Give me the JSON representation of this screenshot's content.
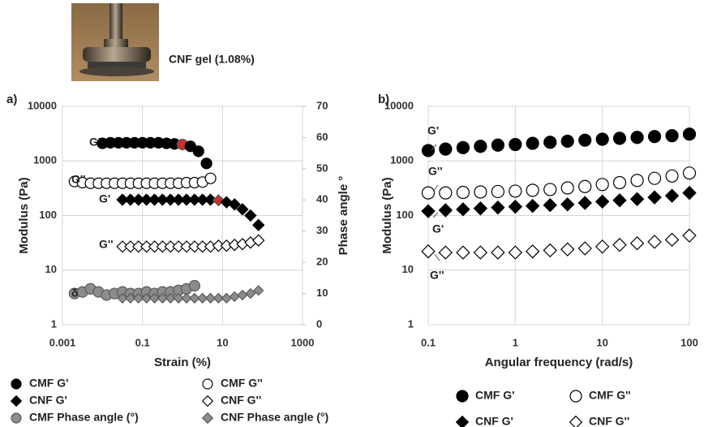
{
  "photo_caption": "CNF gel (1.08%)",
  "chart_data": [
    {
      "type": "scatter",
      "title": "a)",
      "ylabel": "Modulus  (Pa)",
      "y2label": "Phase angle °",
      "xlabel": "Strain (%)",
      "xscale": "log",
      "yscale": "log",
      "grid": true,
      "xlim": [
        0.001,
        1000
      ],
      "xticks": [
        0.001,
        0.1,
        10,
        1000
      ],
      "ylim": [
        1,
        10000
      ],
      "yticks": [
        1,
        10,
        100,
        1000,
        10000
      ],
      "y2lim": [
        0,
        70
      ],
      "y2ticks": [
        0,
        10,
        20,
        30,
        40,
        50,
        60,
        70
      ],
      "annotations": [
        "G'",
        "G''",
        "G'",
        "G''",
        "δ"
      ],
      "series": [
        {
          "name": "CMF G'",
          "marker": "circle",
          "color": "#000000",
          "fill": true,
          "highlight": {
            "index": 10,
            "color": "#c8302c"
          },
          "x": [
            0.01,
            0.0158,
            0.0251,
            0.0398,
            0.0631,
            0.1,
            0.158,
            0.251,
            0.398,
            0.631,
            1,
            1.58,
            2.51,
            3.98
          ],
          "values": [
            2100,
            2150,
            2150,
            2150,
            2150,
            2150,
            2150,
            2150,
            2100,
            2050,
            2000,
            1850,
            1500,
            900
          ]
        },
        {
          "name": "CMF G''",
          "marker": "circle",
          "color": "#000000",
          "fill": false,
          "x": [
            0.002,
            0.00317,
            0.00502,
            0.00796,
            0.0126,
            0.02,
            0.0317,
            0.0502,
            0.0796,
            0.126,
            0.2,
            0.317,
            0.502,
            0.796,
            1.26,
            2,
            3.17,
            5.02
          ],
          "values": [
            420,
            400,
            390,
            390,
            390,
            390,
            390,
            390,
            390,
            390,
            390,
            390,
            390,
            390,
            400,
            400,
            410,
            480
          ]
        },
        {
          "name": "CNF G'",
          "marker": "diamond",
          "color": "#000000",
          "fill": true,
          "highlight": {
            "index": 12,
            "color": "#c8302c"
          },
          "x": [
            0.0316,
            0.0501,
            0.0794,
            0.126,
            0.2,
            0.316,
            0.501,
            0.794,
            1.26,
            2,
            3.16,
            5.01,
            7.94,
            12.6,
            20,
            31.6,
            50.1,
            79.4
          ],
          "values": [
            195,
            195,
            195,
            195,
            195,
            195,
            195,
            195,
            195,
            195,
            195,
            195,
            190,
            175,
            160,
            130,
            100,
            67
          ]
        },
        {
          "name": "CNF G''",
          "marker": "diamond",
          "color": "#000000",
          "fill": false,
          "x": [
            0.0316,
            0.0501,
            0.0794,
            0.126,
            0.2,
            0.316,
            0.501,
            0.794,
            1.26,
            2,
            3.16,
            5.01,
            7.94,
            12.6,
            20,
            31.6,
            50.1,
            79.4
          ],
          "values": [
            27,
            27,
            27,
            27,
            27,
            27,
            27,
            27,
            27,
            27,
            27,
            27,
            28,
            28,
            29,
            30,
            32,
            35
          ]
        },
        {
          "name": "CMF Phase angle (°)",
          "marker": "circle",
          "color": "#8c8c8c",
          "fill": true,
          "axis": "y2",
          "x": [
            0.002,
            0.00317,
            0.00502,
            0.00796,
            0.0126,
            0.02,
            0.0317,
            0.0502,
            0.0796,
            0.126,
            0.2,
            0.317,
            0.502,
            0.796,
            1.26,
            2
          ],
          "values": [
            10,
            10.5,
            11.5,
            10.5,
            9.5,
            10,
            10.5,
            10,
            10,
            10.5,
            10,
            10.5,
            10.5,
            11,
            11.5,
            12.5
          ]
        },
        {
          "name": "CNF Phase angle (°)",
          "marker": "diamond",
          "color": "#8c8c8c",
          "fill": true,
          "axis": "y2",
          "x": [
            0.0316,
            0.0501,
            0.0794,
            0.126,
            0.2,
            0.316,
            0.501,
            0.794,
            1.26,
            2,
            3.16,
            5.01,
            7.94,
            12.6,
            20,
            31.6,
            50.1,
            79.4
          ],
          "values": [
            8.5,
            8.5,
            8.5,
            8.5,
            8.5,
            8.5,
            8.5,
            8.5,
            8.5,
            8.5,
            8.5,
            8.5,
            8.5,
            8.5,
            9,
            9.5,
            10,
            11
          ]
        }
      ]
    },
    {
      "type": "scatter",
      "title": "b)",
      "ylabel": "Modulus (Pa)",
      "xlabel": "Angular frequency (rad/s)",
      "xscale": "log",
      "yscale": "log",
      "grid": true,
      "xlim": [
        0.1,
        100
      ],
      "xticks": [
        0.1,
        1,
        10,
        100
      ],
      "ylim": [
        1,
        10000
      ],
      "yticks": [
        1,
        10,
        100,
        1000,
        10000
      ],
      "annotations": [
        "G'",
        "G''",
        "G'",
        "G''"
      ],
      "series": [
        {
          "name": "CMF G'",
          "marker": "circle",
          "color": "#000000",
          "fill": true,
          "x": [
            0.1,
            0.158,
            0.251,
            0.398,
            0.631,
            1,
            1.58,
            2.51,
            3.98,
            6.31,
            10,
            15.8,
            25.1,
            39.8,
            63.1,
            100
          ],
          "values": [
            1550,
            1650,
            1750,
            1850,
            1950,
            2000,
            2100,
            2200,
            2300,
            2400,
            2500,
            2600,
            2700,
            2800,
            2900,
            3100
          ]
        },
        {
          "name": "CMF G''",
          "marker": "circle",
          "color": "#000000",
          "fill": false,
          "x": [
            0.1,
            0.158,
            0.251,
            0.398,
            0.631,
            1,
            1.58,
            2.51,
            3.98,
            6.31,
            10,
            15.8,
            25.1,
            39.8,
            63.1,
            100
          ],
          "values": [
            260,
            260,
            265,
            270,
            275,
            280,
            290,
            300,
            320,
            340,
            370,
            400,
            440,
            480,
            530,
            600
          ]
        },
        {
          "name": "CNF G'",
          "marker": "diamond",
          "color": "#000000",
          "fill": true,
          "x": [
            0.1,
            0.158,
            0.251,
            0.398,
            0.631,
            1,
            1.58,
            2.51,
            3.98,
            6.31,
            10,
            15.8,
            25.1,
            39.8,
            63.1,
            100
          ],
          "values": [
            120,
            125,
            130,
            135,
            140,
            145,
            150,
            155,
            160,
            170,
            180,
            190,
            200,
            215,
            230,
            260
          ]
        },
        {
          "name": "CNF G''",
          "marker": "diamond",
          "color": "#000000",
          "fill": false,
          "x": [
            0.1,
            0.158,
            0.251,
            0.398,
            0.631,
            1,
            1.58,
            2.51,
            3.98,
            6.31,
            10,
            15.8,
            25.1,
            39.8,
            63.1,
            100
          ],
          "values": [
            22,
            21,
            21,
            21,
            21,
            21,
            22,
            23,
            24,
            25,
            27,
            29,
            31,
            33,
            36,
            43
          ]
        }
      ]
    }
  ]
}
